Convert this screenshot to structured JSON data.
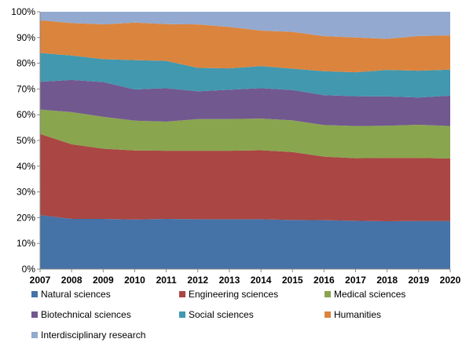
{
  "chart_data": {
    "type": "area",
    "stacked": "percent",
    "x": [
      2007,
      2008,
      2009,
      2010,
      2011,
      2012,
      2013,
      2014,
      2015,
      2016,
      2017,
      2018,
      2019,
      2020
    ],
    "ylim": [
      0,
      100
    ],
    "yticks": [
      "0%",
      "10%",
      "20%",
      "30%",
      "40%",
      "50%",
      "60%",
      "70%",
      "80%",
      "90%",
      "100%"
    ],
    "grid": false,
    "legend_position": "bottom",
    "series": [
      {
        "name": "Natural sciences",
        "color": "#4572A7",
        "values": [
          21,
          19.5,
          19.5,
          19.3,
          19.5,
          19.4,
          19.4,
          19.4,
          19.1,
          19.0,
          18.8,
          18.6,
          18.7,
          18.7
        ]
      },
      {
        "name": "Engineering sciences",
        "color": "#AA4643",
        "values": [
          31.5,
          29.0,
          27.3,
          26.8,
          26.5,
          26.6,
          26.6,
          26.8,
          26.4,
          24.7,
          24.3,
          24.6,
          24.5,
          24.3
        ]
      },
      {
        "name": "Medical sciences",
        "color": "#89A54E",
        "values": [
          9.5,
          12.5,
          12.4,
          11.6,
          11.3,
          12.3,
          12.3,
          12.3,
          12.3,
          12.3,
          12.5,
          12.5,
          12.9,
          12.6
        ]
      },
      {
        "name": "Biotechnical sciences",
        "color": "#71588F",
        "values": [
          10.8,
          12.5,
          13.5,
          12.1,
          13.0,
          10.8,
          11.4,
          11.8,
          11.8,
          11.6,
          11.6,
          11.4,
          10.6,
          11.8
        ]
      },
      {
        "name": "Social sciences",
        "color": "#4198AF",
        "values": [
          11.2,
          9.5,
          8.9,
          11.4,
          10.6,
          9.1,
          8.3,
          8.6,
          8.3,
          9.3,
          9.3,
          10.3,
          10.4,
          10.1
        ]
      },
      {
        "name": "Humanities",
        "color": "#DB843D",
        "values": [
          12.7,
          12.6,
          13.5,
          14.6,
          14.3,
          16.9,
          16.1,
          13.8,
          14.3,
          13.6,
          13.5,
          12.1,
          13.5,
          13.3
        ]
      },
      {
        "name": "Interdisciplinary research",
        "color": "#93A9CF",
        "values": [
          3.3,
          4.4,
          4.9,
          4.2,
          4.8,
          4.9,
          5.9,
          7.3,
          7.8,
          9.5,
          10.0,
          10.5,
          9.4,
          9.2
        ]
      }
    ]
  }
}
